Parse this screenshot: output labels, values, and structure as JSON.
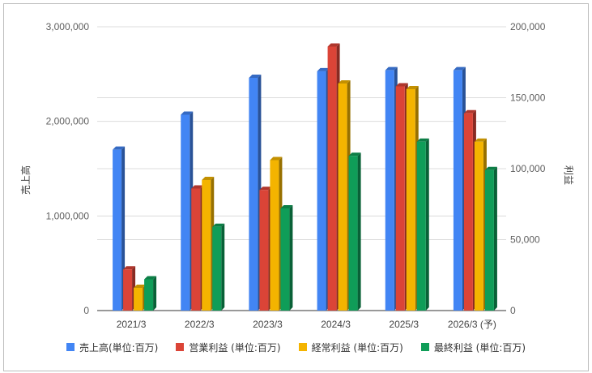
{
  "chart_data": {
    "type": "bar",
    "title": "",
    "categories": [
      "2021/3",
      "2022/3",
      "2023/3",
      "2024/3",
      "2025/3",
      "2026/3 (予)"
    ],
    "y_left": {
      "label": "売上高",
      "range": [
        0,
        3000000
      ],
      "ticks": [
        "0",
        "1,000,000",
        "2,000,000",
        "3,000,000"
      ]
    },
    "y_right": {
      "label": "利益",
      "range": [
        0,
        200000
      ],
      "ticks": [
        "0",
        "50,000",
        "100,000",
        "150,000",
        "200,000"
      ]
    },
    "grid": true,
    "legend_position": "bottom",
    "series": [
      {
        "name": "売上高(単位:百万)",
        "axis": "left",
        "color": "#4285f4",
        "values": [
          1700000,
          2070000,
          2460000,
          2530000,
          2540000,
          2540000
        ]
      },
      {
        "name": "営業利益 (単位:百万)",
        "axis": "right",
        "color": "#db4437",
        "values": [
          29000,
          86000,
          85000,
          186000,
          158000,
          139000
        ]
      },
      {
        "name": "経常利益 (単位:百万)",
        "axis": "right",
        "color": "#f4b400",
        "values": [
          16000,
          92000,
          106000,
          160000,
          156000,
          119000
        ]
      },
      {
        "name": "最終利益 (単位:百万)",
        "axis": "right",
        "color": "#0f9d58",
        "values": [
          22000,
          59000,
          72000,
          109000,
          119000,
          99000
        ]
      }
    ]
  }
}
